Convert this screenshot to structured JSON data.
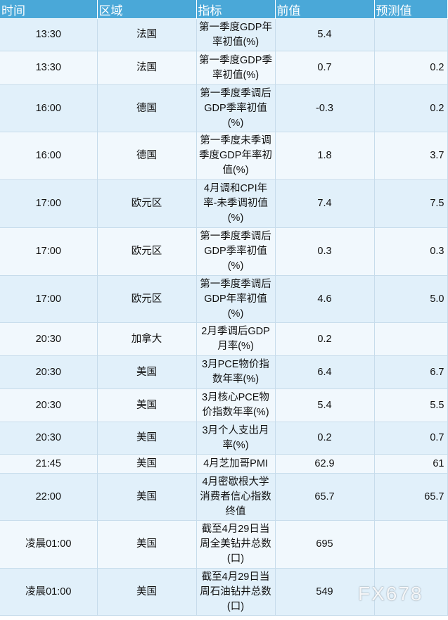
{
  "headers": {
    "time": "时间",
    "region": "区域",
    "indicator": "指标",
    "previous": "前值",
    "forecast": "预测值"
  },
  "rows": [
    {
      "time": "13:30",
      "region": "法国",
      "indicator": "第一季度GDP年率初值(%)",
      "previous": "5.4",
      "forecast": ""
    },
    {
      "time": "13:30",
      "region": "法国",
      "indicator": "第一季度GDP季率初值(%)",
      "previous": "0.7",
      "forecast": "0.2"
    },
    {
      "time": "16:00",
      "region": "德国",
      "indicator": "第一季度季调后GDP季率初值(%)",
      "previous": "-0.3",
      "forecast": "0.2"
    },
    {
      "time": "16:00",
      "region": "德国",
      "indicator": "第一季度未季调季度GDP年率初值(%)",
      "previous": "1.8",
      "forecast": "3.7"
    },
    {
      "time": "17:00",
      "region": "欧元区",
      "indicator": "4月调和CPI年率-未季调初值(%)",
      "previous": "7.4",
      "forecast": "7.5"
    },
    {
      "time": "17:00",
      "region": "欧元区",
      "indicator": "第一季度季调后GDP季率初值(%)",
      "previous": "0.3",
      "forecast": "0.3"
    },
    {
      "time": "17:00",
      "region": "欧元区",
      "indicator": "第一季度季调后GDP年率初值(%)",
      "previous": "4.6",
      "forecast": "5.0"
    },
    {
      "time": "20:30",
      "region": "加拿大",
      "indicator": "2月季调后GDP月率(%)",
      "previous": "0.2",
      "forecast": ""
    },
    {
      "time": "20:30",
      "region": "美国",
      "indicator": "3月PCE物价指数年率(%)",
      "previous": "6.4",
      "forecast": "6.7"
    },
    {
      "time": "20:30",
      "region": "美国",
      "indicator": "3月核心PCE物价指数年率(%)",
      "previous": "5.4",
      "forecast": "5.5"
    },
    {
      "time": "20:30",
      "region": "美国",
      "indicator": "3月个人支出月率(%)",
      "previous": "0.2",
      "forecast": "0.7"
    },
    {
      "time": "21:45",
      "region": "美国",
      "indicator": "4月芝加哥PMI",
      "previous": "62.9",
      "forecast": "61"
    },
    {
      "time": "22:00",
      "region": "美国",
      "indicator": "4月密歇根大学消费者信心指数终值",
      "previous": "65.7",
      "forecast": "65.7"
    },
    {
      "time": "凌晨01:00",
      "region": "美国",
      "indicator": "截至4月29日当周全美钻井总数(口)",
      "previous": "695",
      "forecast": ""
    },
    {
      "time": "凌晨01:00",
      "region": "美国",
      "indicator": "截至4月29日当周石油钻井总数(口)",
      "previous": "549",
      "forecast": ""
    }
  ],
  "watermark": "FX678",
  "colors": {
    "header_bg": "#4aa8d8",
    "row_odd_bg": "#e1f0fa",
    "row_even_bg": "#f1f8fd"
  }
}
